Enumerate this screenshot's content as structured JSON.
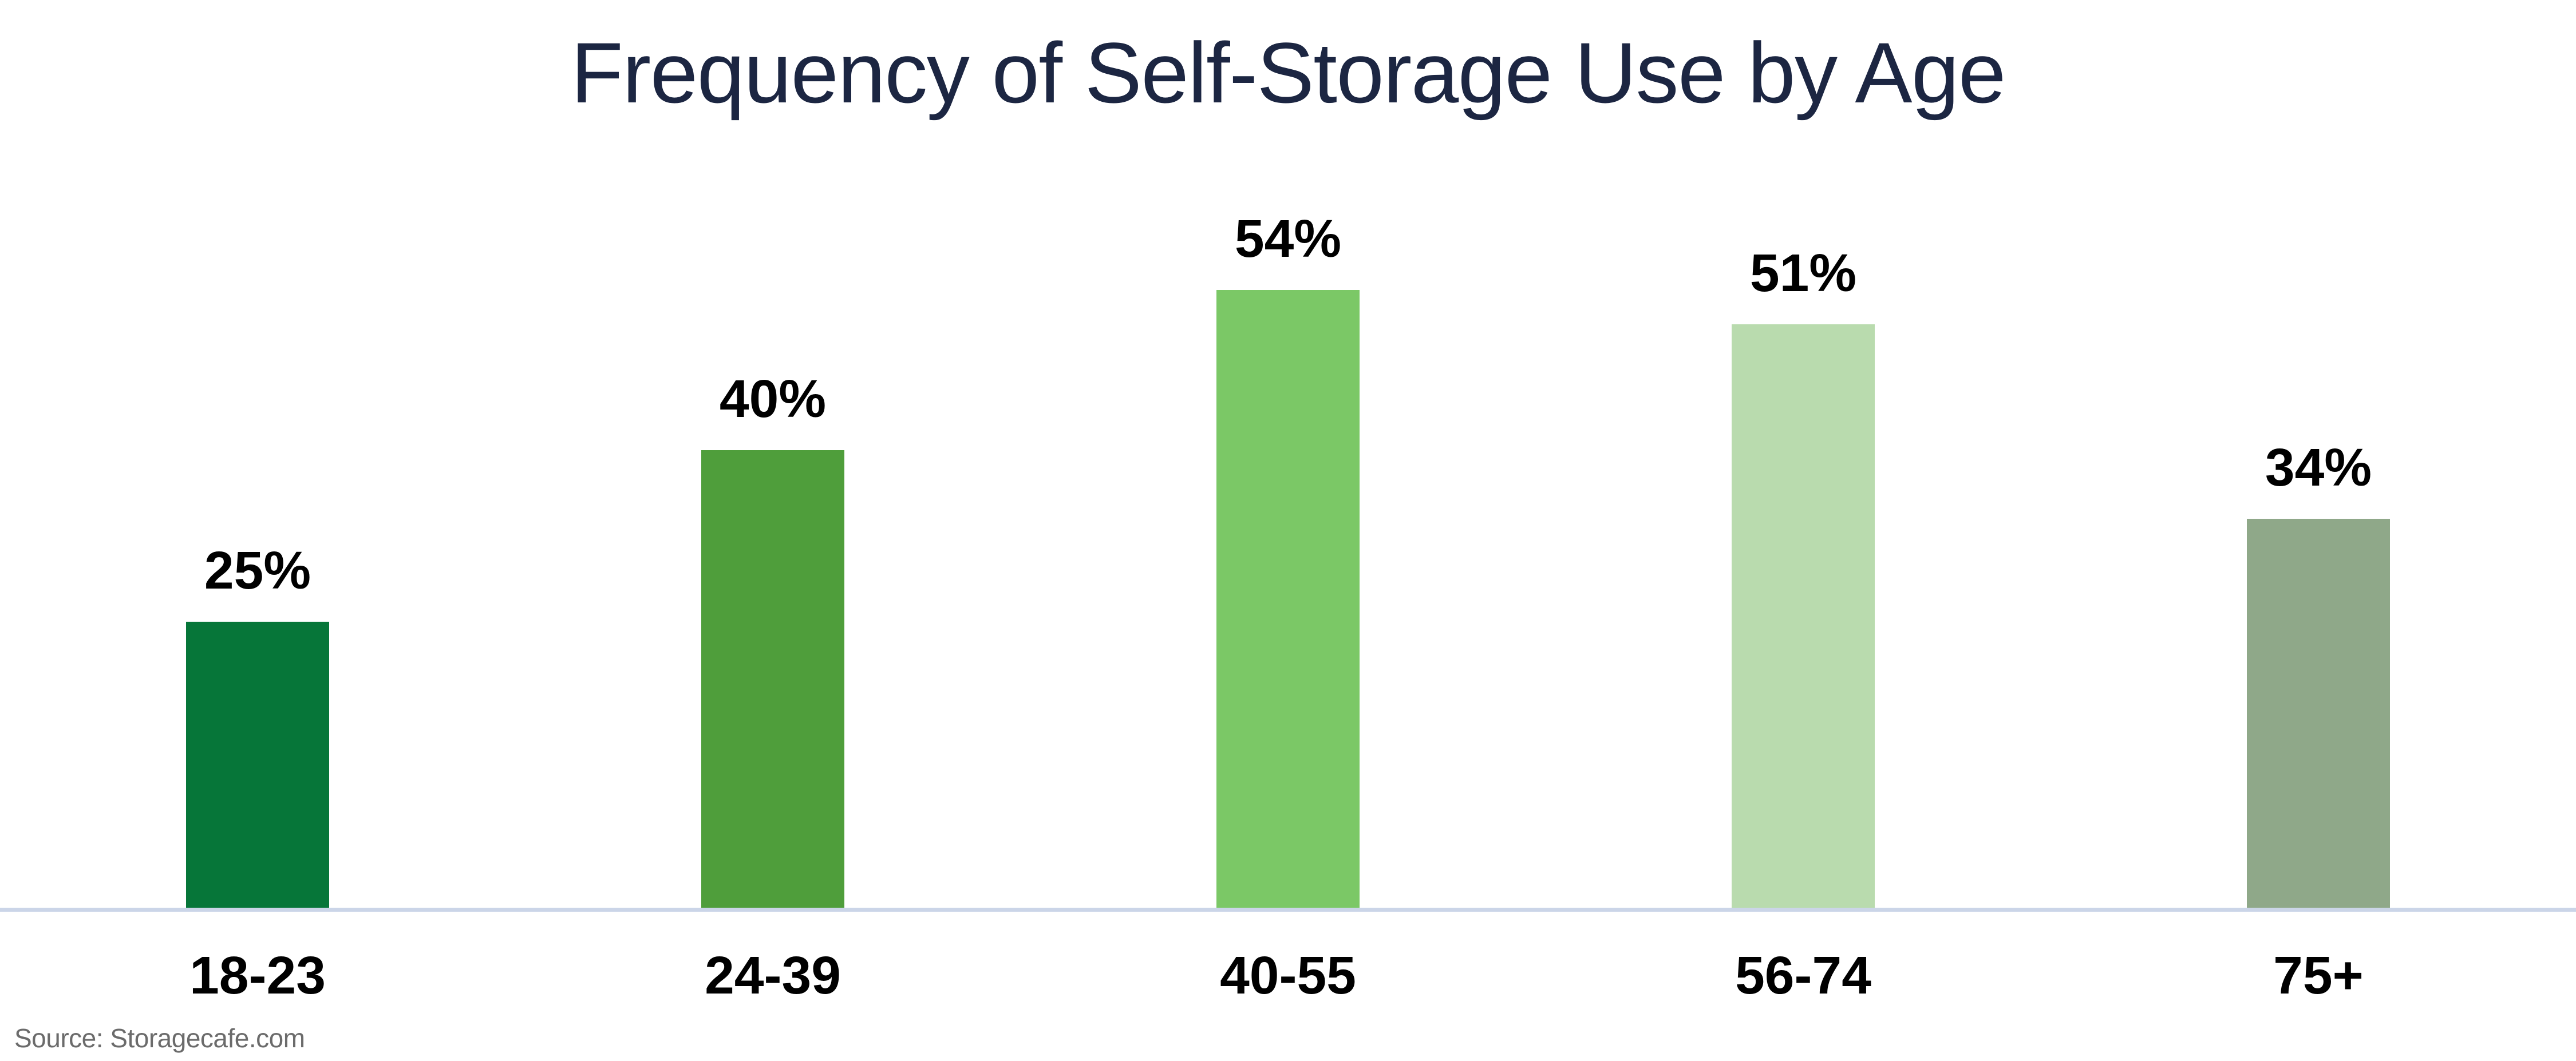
{
  "page": {
    "title": "Frequency of Self-Storage Use by Age",
    "source_note": "Source: Storagecafe.com"
  },
  "chart_data": {
    "type": "bar",
    "title": "Frequency of Self-Storage Use by Age",
    "categories": [
      "18-23",
      "24-39",
      "40-55",
      "56-74",
      "75+"
    ],
    "values": [
      25,
      40,
      54,
      51,
      34
    ],
    "value_labels": [
      "25%",
      "40%",
      "54%",
      "51%",
      "34%"
    ],
    "unit": "%",
    "xlabel": "",
    "ylabel": "",
    "ylim": [
      0,
      60
    ],
    "grid": false,
    "legend": false,
    "data_labels_position": "above-bar",
    "source": "Source: Storagecafe.com",
    "bar_colors": [
      "#067639",
      "#4F9E3B",
      "#7BC866",
      "#B9DBAE",
      "#8FA889"
    ],
    "colors": {
      "title_text": "#1C2642",
      "value_label_text": "#000000",
      "category_label_text": "#000000",
      "axis_baseline": "#CBD5E8",
      "source_text": "#6B6B6B",
      "background": "#FFFFFF"
    }
  }
}
